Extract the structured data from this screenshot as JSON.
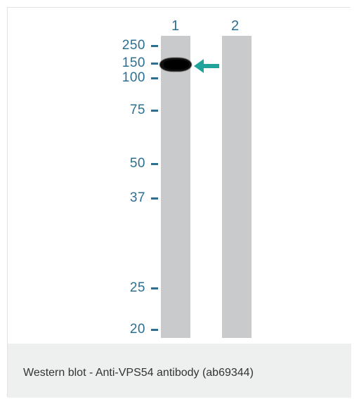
{
  "blot": {
    "lanes": [
      "1",
      "2"
    ],
    "markers": [
      "250",
      "150",
      "100",
      "75",
      "50",
      "37",
      "25",
      "20"
    ],
    "arrow_color": "#1fa39a",
    "lane_color": "#c9cacb",
    "marker_color": "#2b6f93"
  },
  "caption": {
    "text": "Western blot - Anti-VPS54 antibody (ab69344)"
  }
}
